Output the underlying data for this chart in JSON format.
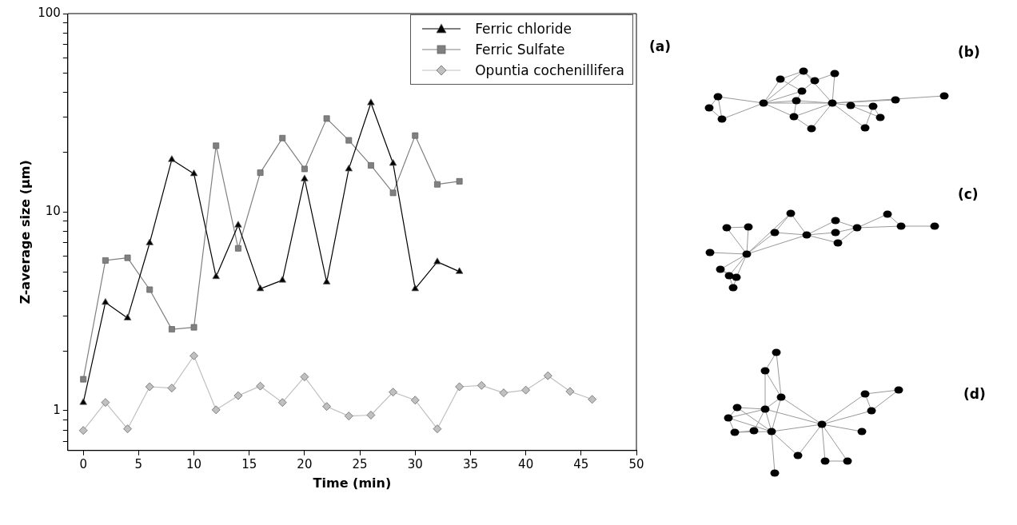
{
  "chart_data": {
    "type": "line",
    "xlabel": "Time (min)",
    "ylabel": "Z-average size (µm)",
    "log": "y",
    "xlim": [
      -1.4,
      50
    ],
    "xticks": [
      0,
      5,
      10,
      15,
      20,
      25,
      30,
      35,
      40,
      45,
      50
    ],
    "ylim": [
      0.63,
      100
    ],
    "yticks": [
      {
        "value": 0.7,
        "label": null
      },
      {
        "value": 0.8,
        "label": null
      },
      {
        "value": 0.9,
        "label": null
      },
      1,
      {
        "value": 2,
        "label": null
      },
      {
        "value": 3,
        "label": null
      },
      {
        "value": 4,
        "label": null
      },
      {
        "value": 5,
        "label": null
      },
      {
        "value": 6,
        "label": null
      },
      {
        "value": 7,
        "label": null
      },
      {
        "value": 8,
        "label": null
      },
      {
        "value": 9,
        "label": null
      },
      10,
      {
        "value": 20,
        "label": null
      },
      {
        "value": 30,
        "label": null
      },
      {
        "value": 40,
        "label": null
      },
      {
        "value": 50,
        "label": null
      },
      {
        "value": 60,
        "label": null
      },
      {
        "value": 70,
        "label": null
      },
      {
        "value": 80,
        "label": null
      },
      {
        "value": 90,
        "label": null
      },
      100
    ],
    "grid": false,
    "legend": "top right",
    "line_style": "solid",
    "annotations": [
      "(a)",
      "(b)",
      "(c)",
      "(d)"
    ],
    "series": [
      {
        "name": "Ferric chloride",
        "color": "#000000",
        "marker": "triangle",
        "x": [
          0,
          2,
          4,
          6,
          8,
          10,
          12,
          14,
          16,
          18,
          20,
          22,
          24,
          26,
          28,
          30,
          32,
          34
        ],
        "values": [
          1.1,
          3.51,
          2.93,
          7.0,
          18.4,
          15.6,
          4.73,
          8.6,
          4.11,
          4.54,
          14.7,
          4.44,
          16.5,
          35.5,
          17.6,
          4.11,
          5.62,
          5.02
        ]
      },
      {
        "name": "Ferric Sulfate",
        "color": "#808080",
        "marker": "square",
        "x": [
          0,
          2,
          4,
          6,
          8,
          10,
          12,
          14,
          16,
          18,
          20,
          22,
          24,
          26,
          28,
          30,
          32,
          34
        ],
        "values": [
          1.44,
          5.71,
          5.89,
          4.07,
          2.57,
          2.63,
          21.6,
          6.57,
          15.8,
          23.6,
          16.5,
          29.6,
          23.0,
          17.2,
          12.5,
          24.3,
          13.8,
          14.3
        ]
      },
      {
        "name": "Opuntia cochenillifera",
        "color": "#c0c0c0",
        "marker": "diamond",
        "x": [
          0,
          2,
          4,
          6,
          8,
          10,
          12,
          14,
          16,
          18,
          20,
          22,
          24,
          26,
          28,
          30,
          32,
          34,
          36,
          38,
          40,
          42,
          44,
          46
        ],
        "values": [
          0.795,
          1.1,
          0.81,
          1.32,
          1.3,
          1.89,
          1.01,
          1.19,
          1.33,
          1.1,
          1.48,
          1.05,
          0.94,
          0.95,
          1.24,
          1.13,
          0.81,
          1.32,
          1.34,
          1.23,
          1.27,
          1.5,
          1.25,
          1.14
        ]
      }
    ]
  }
}
